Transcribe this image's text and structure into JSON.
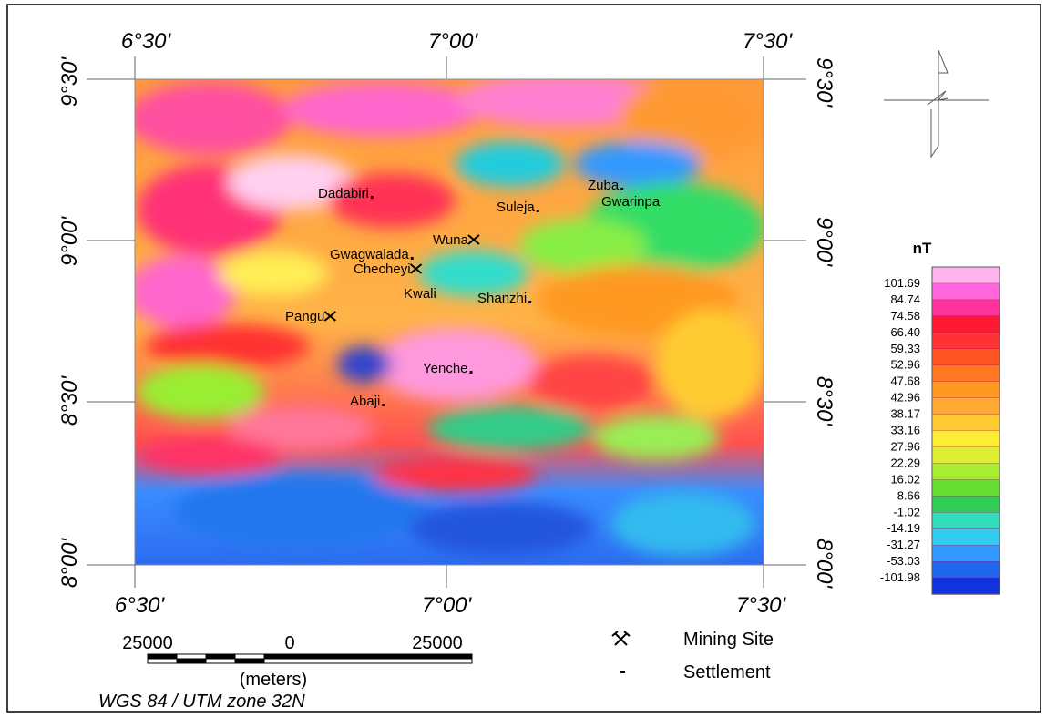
{
  "map": {
    "top_labels": [
      "6°30'",
      "7°00'",
      "7°30'"
    ],
    "bottom_labels": [
      "6°30'",
      "7°00'",
      "7°30'"
    ],
    "left_labels": [
      "9°30'",
      "9°00'",
      "8°30'",
      "8°00'"
    ],
    "right_labels": [
      "9°30'",
      "9°00'",
      "8°30'",
      "8°00'"
    ],
    "places": [
      "Dadabiri",
      "Suleja",
      "Zuba",
      "Gwarinpa",
      "Wuna",
      "Gwagwalada",
      "Checheyi",
      "Kwali",
      "Shanzhi",
      "Pangu",
      "Yenche",
      "Abaji"
    ],
    "colorbar": {
      "unit": "nT",
      "labels": [
        "101.69",
        "84.74",
        "74.58",
        "66.40",
        "59.33",
        "52.96",
        "47.68",
        "42.96",
        "38.17",
        "33.16",
        "27.96",
        "22.29",
        "16.02",
        "8.66",
        "-1.02",
        "-14.19",
        "-31.27",
        "-53.03",
        "-101.98"
      ]
    },
    "legend": [
      "Mining Site",
      "Settlement"
    ],
    "scale": {
      "labels": [
        "25000",
        "0",
        "25000"
      ],
      "unit": "(meters)",
      "projection": "WGS 84 / UTM zone 32N"
    }
  }
}
